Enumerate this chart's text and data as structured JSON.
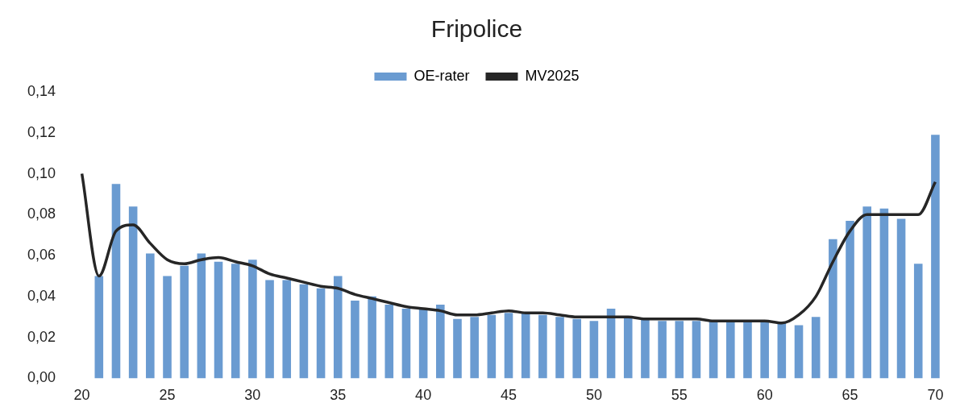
{
  "chart_data": {
    "type": "bar",
    "title": "Fripolice",
    "categories": [
      "20",
      null,
      null,
      null,
      null,
      "25",
      null,
      null,
      null,
      null,
      "30",
      null,
      null,
      null,
      null,
      "35",
      null,
      null,
      null,
      null,
      "40",
      null,
      null,
      null,
      null,
      "45",
      null,
      null,
      null,
      null,
      "50",
      null,
      null,
      null,
      null,
      "55",
      null,
      null,
      null,
      null,
      "60",
      null,
      null,
      null,
      null,
      "65",
      null,
      null,
      null,
      null,
      "70"
    ],
    "series": [
      {
        "name": "OE-rater",
        "color": "#6a9bd1",
        "values": [
          null,
          0.05,
          0.095,
          0.084,
          0.061,
          0.05,
          0.055,
          0.061,
          0.057,
          0.056,
          0.058,
          0.048,
          0.048,
          0.046,
          0.044,
          0.05,
          0.038,
          0.04,
          0.036,
          0.034,
          0.034,
          0.036,
          0.029,
          0.03,
          0.031,
          0.032,
          0.032,
          0.031,
          0.03,
          0.029,
          0.028,
          0.034,
          0.03,
          0.029,
          0.028,
          0.028,
          0.028,
          0.028,
          0.028,
          0.028,
          0.028,
          0.027,
          0.026,
          0.03,
          0.068,
          0.077,
          0.084,
          0.083,
          0.078,
          0.056,
          0.119
        ]
      },
      {
        "name": "MV2025",
        "type": "line",
        "color": "#262626",
        "values": [
          0.1,
          0.05,
          0.072,
          0.075,
          0.066,
          0.058,
          0.056,
          0.058,
          0.059,
          0.057,
          0.055,
          0.051,
          0.049,
          0.047,
          0.045,
          0.044,
          0.041,
          0.039,
          0.037,
          0.035,
          0.034,
          0.033,
          0.031,
          0.031,
          0.032,
          0.033,
          0.032,
          0.032,
          0.031,
          0.03,
          0.03,
          0.03,
          0.03,
          0.029,
          0.029,
          0.029,
          0.029,
          0.028,
          0.028,
          0.028,
          0.028,
          0.027,
          0.031,
          0.04,
          0.057,
          0.072,
          0.08,
          0.08,
          0.08,
          0.08,
          0.096
        ]
      }
    ],
    "ylim": [
      0,
      0.14
    ],
    "yticks": [
      {
        "value": 0,
        "label": "0,00"
      },
      {
        "value": 0.02,
        "label": "0,02"
      },
      {
        "value": 0.04,
        "label": "0,04"
      },
      {
        "value": 0.06,
        "label": "0,06"
      },
      {
        "value": 0.08,
        "label": "0,08"
      },
      {
        "value": 0.1,
        "label": "0,10"
      },
      {
        "value": 0.12,
        "label": "0,12"
      },
      {
        "value": 0.14,
        "label": "0,14"
      }
    ],
    "legend": "top",
    "marker": "none",
    "line_style": "solid"
  }
}
